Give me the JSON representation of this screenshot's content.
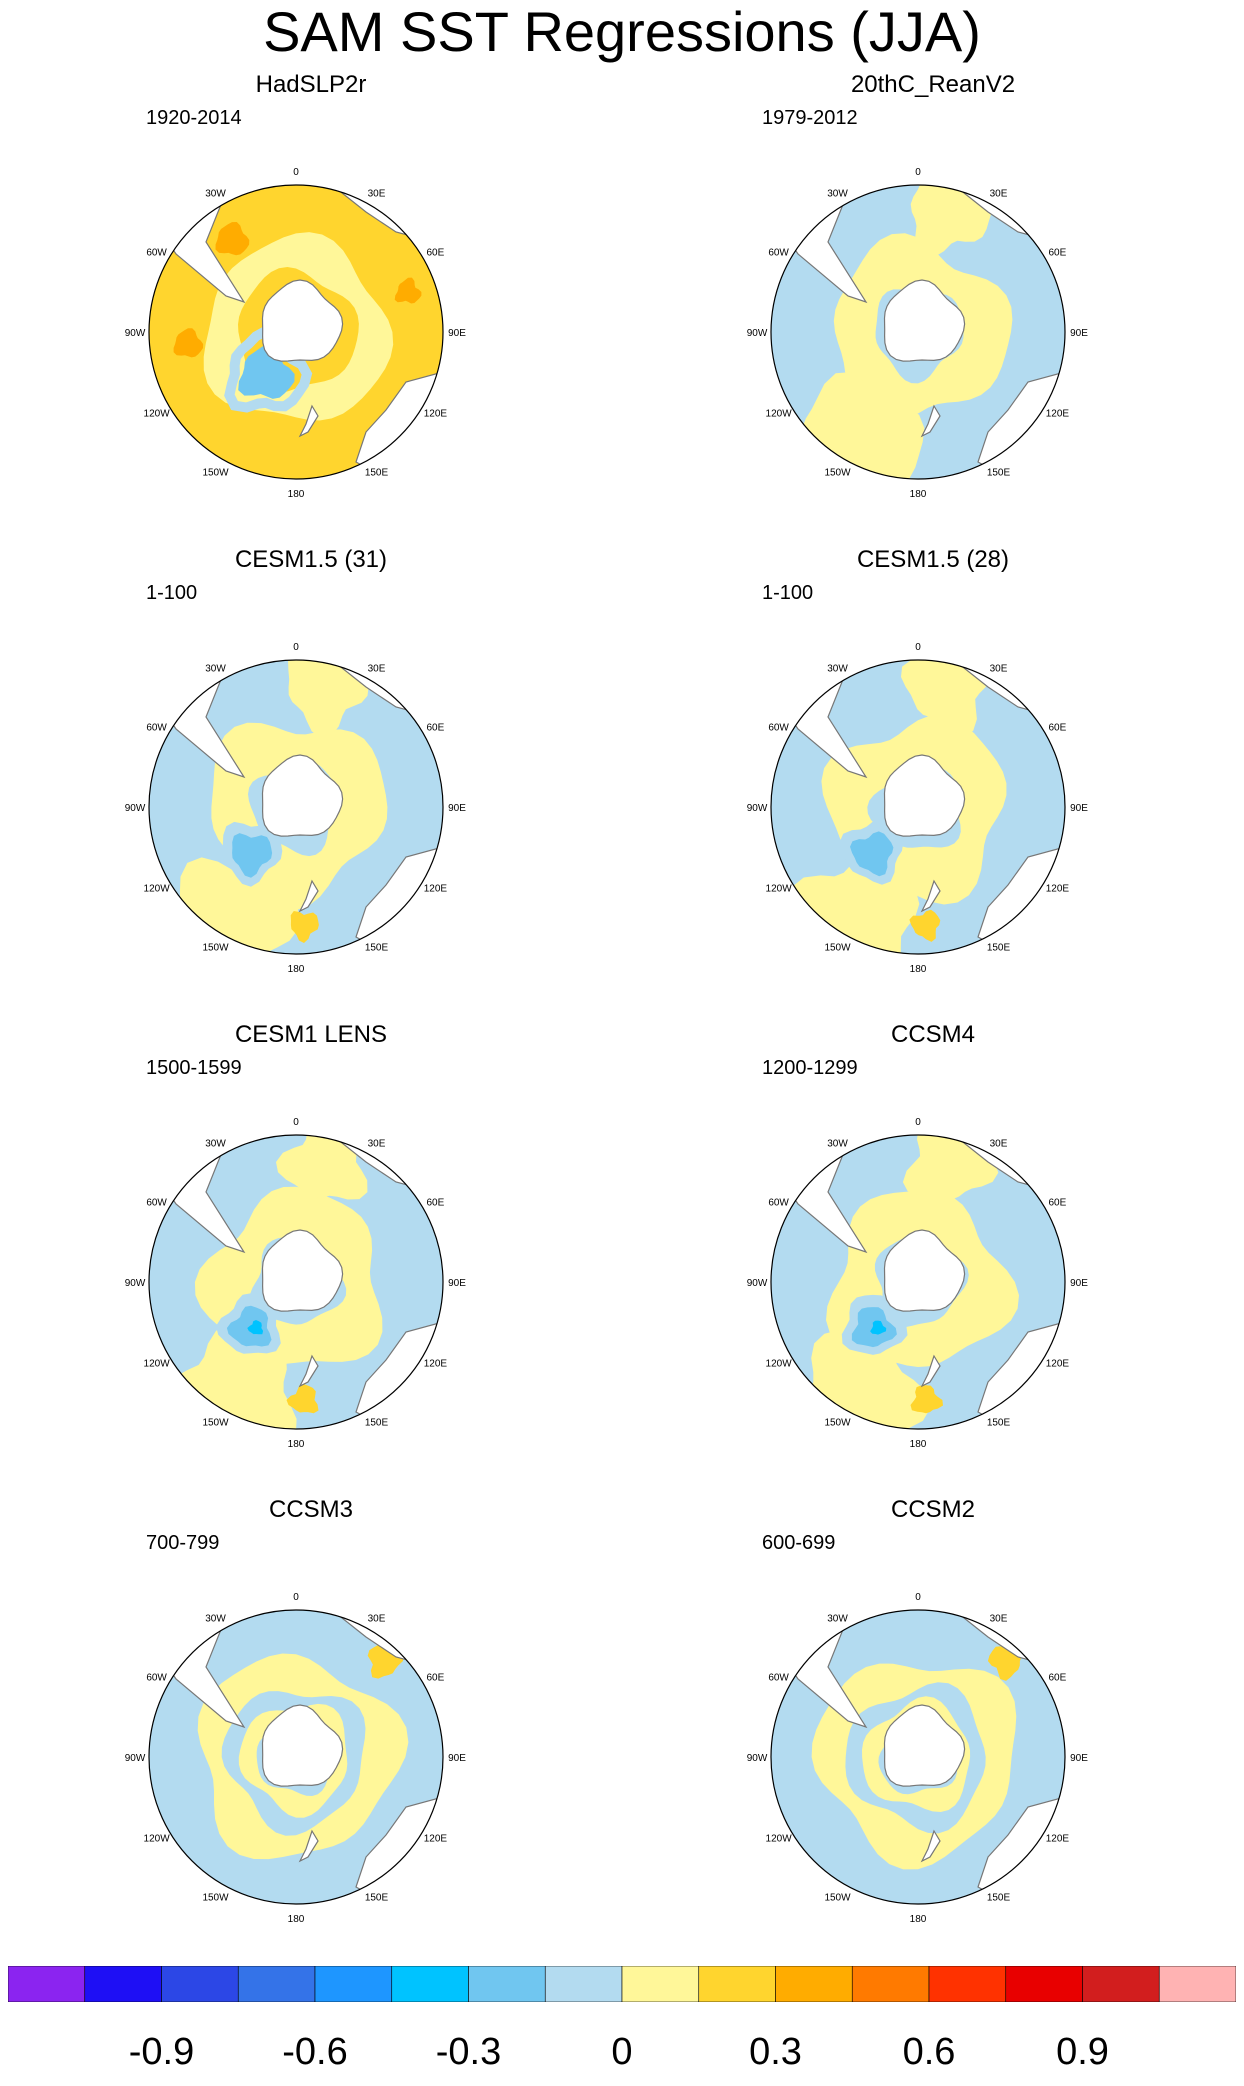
{
  "title": "SAM SST Regressions (JJA)",
  "chart_data": {
    "type": "map",
    "projection": "south polar stereographic",
    "variable": "SST regression on SAM index, JJA",
    "lon_labels": [
      "0",
      "30E",
      "60E",
      "90E",
      "120E",
      "150E",
      "180",
      "150W",
      "120W",
      "90W",
      "60W",
      "30W"
    ],
    "panels": [
      {
        "title": "HadSLP2r",
        "period": "1920-2014",
        "pattern": "positive",
        "negative_patch": "weak"
      },
      {
        "title": "20thC_ReanV2",
        "period": "1979-2012",
        "pattern": "mixed",
        "negative_patch": "none"
      },
      {
        "title": "CESM1.5 (31)",
        "period": "1-100",
        "pattern": "mixed",
        "negative_patch": "moderate"
      },
      {
        "title": "CESM1.5 (28)",
        "period": "1-100",
        "pattern": "mixed",
        "negative_patch": "moderate"
      },
      {
        "title": "CESM1 LENS",
        "period": "1500-1599",
        "pattern": "mixed",
        "negative_patch": "strong"
      },
      {
        "title": "CCSM4",
        "period": "1200-1299",
        "pattern": "mixed",
        "negative_patch": "strong"
      },
      {
        "title": "CCSM3",
        "period": "700-799",
        "pattern": "rings",
        "negative_patch": "none"
      },
      {
        "title": "CCSM2",
        "period": "600-699",
        "pattern": "rings",
        "negative_patch": "none"
      }
    ],
    "colorbar": {
      "colors": [
        "#8b24f0",
        "#1e0ff5",
        "#2c47e6",
        "#3473e8",
        "#1e96ff",
        "#00c3ff",
        "#70c6f0",
        "#b3dbf0",
        "#fff799",
        "#ffd52e",
        "#ffac00",
        "#ff7a00",
        "#ff3200",
        "#e80000",
        "#d21e1e",
        "#ffb3b3"
      ],
      "levels": [
        -1.05,
        -0.9,
        -0.75,
        -0.6,
        -0.45,
        -0.3,
        -0.15,
        0,
        0.15,
        0.3,
        0.45,
        0.6,
        0.75,
        0.9,
        1.05
      ],
      "tick_labels": [
        "-0.9",
        "-0.6",
        "-0.3",
        "0",
        "0.3",
        "0.6",
        "0.9"
      ],
      "tick_values": [
        -0.9,
        -0.6,
        -0.3,
        0,
        0.3,
        0.6,
        0.9
      ],
      "range": [
        -1.2,
        1.2
      ]
    }
  }
}
